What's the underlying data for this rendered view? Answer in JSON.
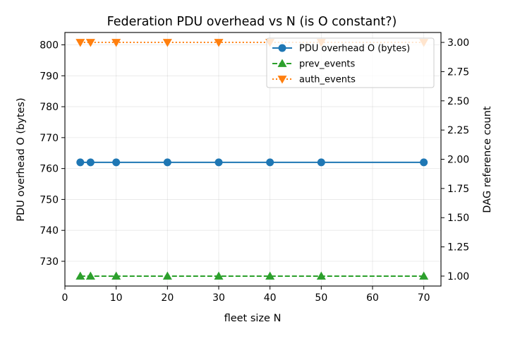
{
  "chart_data": {
    "type": "line",
    "title": "Federation PDU overhead vs N (is O constant?)",
    "xlabel": "fleet size N",
    "ylabel_left": "PDU overhead O (bytes)",
    "ylabel_right": "DAG reference count",
    "x": [
      3,
      5,
      10,
      20,
      30,
      40,
      50,
      70
    ],
    "xlim": [
      0,
      73.35
    ],
    "ylim_left": [
      722,
      804
    ],
    "ylim_right": [
      0.915,
      3.085
    ],
    "xticks": [
      0,
      10,
      20,
      30,
      40,
      50,
      60,
      70
    ],
    "yticks_left": [
      730,
      740,
      750,
      760,
      770,
      780,
      790,
      800
    ],
    "yticks_right": [
      1.0,
      1.25,
      1.5,
      1.75,
      2.0,
      2.25,
      2.5,
      2.75,
      3.0
    ],
    "grid": true,
    "legend_position": "upper-right",
    "series": [
      {
        "name": "PDU overhead O (bytes)",
        "axis": "left",
        "values": [
          762,
          762,
          762,
          762,
          762,
          762,
          762,
          762
        ],
        "color": "#1f77b4",
        "linestyle": "solid",
        "marker": "circle"
      },
      {
        "name": "prev_events",
        "axis": "right",
        "values": [
          1,
          1,
          1,
          1,
          1,
          1,
          1,
          1
        ],
        "color": "#2ca02c",
        "linestyle": "dashed",
        "marker": "triangle-up"
      },
      {
        "name": "auth_events",
        "axis": "right",
        "values": [
          3,
          3,
          3,
          3,
          3,
          3,
          3,
          3
        ],
        "color": "#ff7f0e",
        "linestyle": "dotted",
        "marker": "triangle-down"
      }
    ]
  }
}
